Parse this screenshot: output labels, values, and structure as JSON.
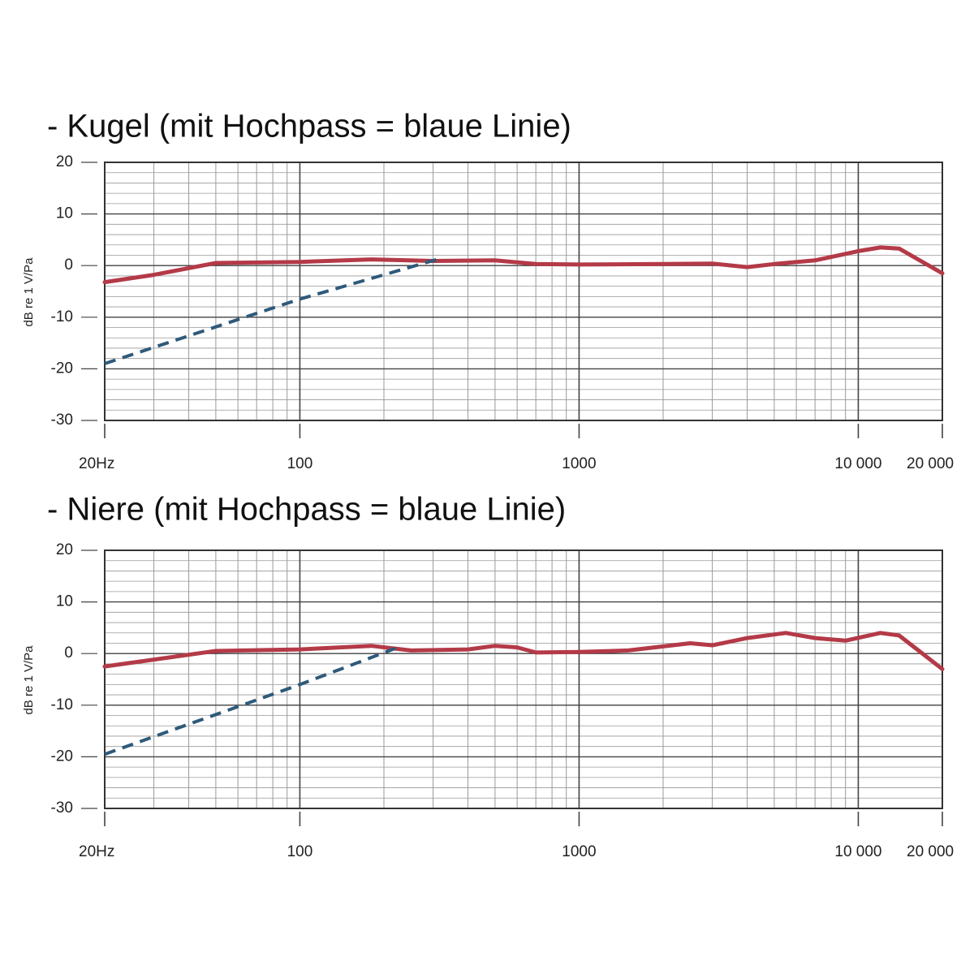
{
  "chart_data": [
    {
      "type": "line",
      "title": "- Kugel (mit Hochpass = blaue Linie)",
      "y_label": "dB re 1 V/Pa",
      "log_x": true,
      "grid": true,
      "xlim": [
        20,
        20000
      ],
      "ylim": [
        -30,
        20
      ],
      "xticks": [
        {
          "value": 20,
          "label": "20Hz"
        },
        100,
        1000,
        {
          "value": 10000,
          "label": "10 000"
        },
        {
          "value": 20000,
          "label": "20 000"
        }
      ],
      "yticks": [
        20,
        10,
        0,
        -10,
        -20,
        -30
      ],
      "series": [
        {
          "color": "#b43a48",
          "style": "solid",
          "x": [
            20,
            30,
            50,
            100,
            180,
            300,
            500,
            700,
            1000,
            2000,
            3000,
            4000,
            5000,
            7000,
            10000,
            12000,
            14000,
            20000
          ],
          "values": [
            -3.2,
            -1.8,
            0.5,
            0.7,
            1.2,
            0.9,
            1.0,
            0.3,
            0.2,
            0.3,
            0.4,
            -0.3,
            0.3,
            1.0,
            2.8,
            3.5,
            3.3,
            -1.5
          ]
        },
        {
          "color": "#2e5a7a",
          "style": "dashed",
          "x": [
            20,
            100,
            310
          ],
          "values": [
            -19,
            -6.5,
            1.2
          ]
        }
      ]
    },
    {
      "type": "line",
      "title": "- Niere (mit Hochpass = blaue Linie)",
      "y_label": "dB re 1 V/Pa",
      "log_x": true,
      "grid": true,
      "xlim": [
        20,
        20000
      ],
      "ylim": [
        -30,
        20
      ],
      "xticks": [
        {
          "value": 20,
          "label": "20Hz"
        },
        100,
        1000,
        {
          "value": 10000,
          "label": "10 000"
        },
        {
          "value": 20000,
          "label": "20 000"
        }
      ],
      "yticks": [
        20,
        10,
        0,
        -10,
        -20,
        -30
      ],
      "series": [
        {
          "color": "#b43a48",
          "style": "solid",
          "x": [
            20,
            50,
            100,
            180,
            250,
            400,
            500,
            600,
            700,
            1000,
            1500,
            2500,
            3000,
            4000,
            5500,
            7000,
            9000,
            12000,
            14000,
            20000
          ],
          "values": [
            -2.5,
            0.5,
            0.8,
            1.5,
            0.6,
            0.8,
            1.5,
            1.2,
            0.2,
            0.3,
            0.6,
            2.0,
            1.6,
            3.0,
            4.0,
            3.0,
            2.5,
            4.0,
            3.5,
            -3
          ]
        },
        {
          "color": "#2e5a7a",
          "style": "dashed",
          "x": [
            20,
            100,
            220
          ],
          "values": [
            -19.5,
            -6,
            1.0
          ]
        }
      ]
    }
  ]
}
